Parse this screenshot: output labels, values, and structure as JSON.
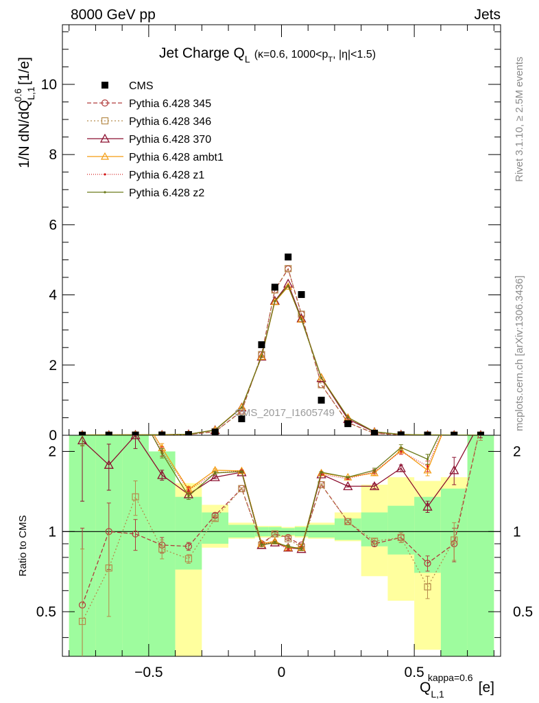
{
  "header": {
    "left": "8000 GeV pp",
    "right": "Jets"
  },
  "plot_title": {
    "main": "Jet Charge Q",
    "main_sub": "L",
    "cut_a": "(κ=0.6, 1000<p",
    "cut_sub": "T",
    "cut_b": ", |η|<1.5)"
  },
  "side_labels": {
    "rivet": "Rivet 3.1.10, ≥ 2.5M events",
    "site": "mcplots.cern.ch [arXiv:1306.3436]"
  },
  "watermark": "CMS_2017_I1605749",
  "axes": {
    "y_main_label": "1/N dN/dQ",
    "y_main_sup": "0.6",
    "y_main_sub": "L,1",
    "y_main_unit": "[1/e]",
    "y_ratio_label": "Ratio to CMS",
    "x_label": "Q",
    "x_sup": "kappa=0.6",
    "x_sub": "L,1",
    "x_unit": "[e]"
  },
  "chart_data": {
    "type": "line",
    "x_bins": [
      -0.8,
      -0.7,
      -0.6,
      -0.5,
      -0.4,
      -0.3,
      -0.2,
      -0.1,
      -0.05,
      0.0,
      0.05,
      0.1,
      0.2,
      0.3,
      0.4,
      0.5,
      0.6,
      0.7,
      0.8
    ],
    "x": [
      -0.75,
      -0.65,
      -0.55,
      -0.45,
      -0.35,
      -0.25,
      -0.15,
      -0.075,
      -0.025,
      0.025,
      0.075,
      0.15,
      0.25,
      0.35,
      0.45,
      0.55,
      0.65,
      0.75
    ],
    "main_xlim": [
      -0.825,
      0.825
    ],
    "main_ylim": [
      0,
      11.7
    ],
    "main_yticks": [
      0,
      2,
      4,
      6,
      8,
      10
    ],
    "ratio_ylim": [
      0.34,
      2.3
    ],
    "ratio_yscale": "log",
    "ratio_yticks": [
      0.5,
      1,
      2
    ],
    "x_ticks": [
      -0.5,
      0,
      0.5
    ],
    "data": {
      "name": "CMS",
      "y": [
        0.003,
        0.004,
        0.005,
        0.008,
        0.02,
        0.09,
        0.47,
        2.58,
        4.22,
        5.08,
        4.01,
        1.0,
        0.33,
        0.06,
        0.011,
        0.005,
        0.003,
        0.003
      ]
    },
    "series": [
      {
        "name": "Pythia 6.428 345",
        "color": "#b03a3a",
        "dash": "6,3",
        "marker": "circle",
        "y": [
          0.0016,
          0.004,
          0.0049,
          0.007,
          0.018,
          0.104,
          0.69,
          2.3,
          4.14,
          4.74,
          3.45,
          1.44,
          0.36,
          0.054,
          0.0104,
          0.0038,
          0.0027,
          0.0045
        ],
        "ratio": [
          0.53,
          1.0,
          0.98,
          0.89,
          0.88,
          1.15,
          1.45,
          0.9,
          0.98,
          0.95,
          0.89,
          1.5,
          1.09,
          0.9,
          0.95,
          0.76,
          0.9,
          2.5
        ],
        "ratio_err": [
          0.5,
          0.28,
          0.13,
          0.06,
          0.03,
          0.02,
          0.01,
          0.01,
          0.01,
          0.01,
          0.01,
          0.01,
          0.01,
          0.02,
          0.04,
          0.05,
          0.13,
          0.3
        ]
      },
      {
        "name": "Pythia 6.428 346",
        "color": "#b58a4a",
        "dash": "2,3",
        "marker": "square",
        "y": [
          0.0014,
          0.003,
          0.0068,
          0.007,
          0.016,
          0.101,
          0.68,
          2.3,
          4.14,
          4.75,
          3.45,
          1.44,
          0.36,
          0.055,
          0.0105,
          0.0031,
          0.0028,
          0.0045
        ],
        "ratio": [
          0.46,
          0.73,
          1.35,
          0.86,
          0.79,
          1.12,
          1.45,
          0.89,
          0.98,
          0.94,
          0.87,
          1.5,
          1.09,
          0.92,
          0.95,
          0.62,
          0.93,
          2.5
        ],
        "ratio_err": [
          0.4,
          0.25,
          0.2,
          0.07,
          0.03,
          0.02,
          0.01,
          0.01,
          0.01,
          0.01,
          0.01,
          0.01,
          0.01,
          0.02,
          0.04,
          0.06,
          0.15,
          0.3
        ]
      },
      {
        "name": "Pythia 6.428 370",
        "color": "#8b0e2e",
        "dash": "",
        "marker": "triangle",
        "y": [
          0.0066,
          0.007,
          0.0115,
          0.013,
          0.027,
          0.146,
          0.79,
          2.24,
          3.83,
          4.32,
          3.33,
          1.63,
          0.46,
          0.091,
          0.019,
          0.0062,
          0.005,
          0.008
        ],
        "ratio": [
          2.2,
          1.78,
          2.3,
          1.63,
          1.38,
          1.6,
          1.67,
          0.89,
          0.91,
          0.87,
          0.86,
          1.64,
          1.48,
          1.48,
          1.73,
          1.24,
          1.7,
          2.6
        ],
        "ratio_err": [
          0.9,
          0.35,
          0.25,
          0.07,
          0.04,
          0.02,
          0.01,
          0.01,
          0.01,
          0.01,
          0.01,
          0.01,
          0.01,
          0.03,
          0.05,
          0.06,
          0.2,
          0.35
        ]
      },
      {
        "name": "Pythia 6.428 ambt1",
        "color": "#f39c12",
        "dash": "",
        "marker": "triangle-open-orange",
        "y": [
          0.009,
          0.012,
          0.015,
          0.0165,
          0.029,
          0.154,
          0.8,
          2.24,
          3.8,
          4.24,
          3.3,
          1.65,
          0.51,
          0.1,
          0.022,
          0.0085,
          0.008,
          0.008
        ],
        "ratio": [
          3.0,
          3.0,
          3.0,
          2.06,
          1.44,
          1.7,
          1.69,
          0.9,
          0.92,
          0.87,
          0.87,
          1.66,
          1.6,
          1.66,
          2.02,
          1.7,
          3.0,
          3.0
        ],
        "ratio_err": [
          0.9,
          0.4,
          0.3,
          0.08,
          0.04,
          0.02,
          0.01,
          0.01,
          0.01,
          0.01,
          0.01,
          0.01,
          0.01,
          0.03,
          0.05,
          0.08,
          0.3,
          0.4
        ]
      },
      {
        "name": "Pythia 6.428 z1",
        "color": "#d42020",
        "dash": "1,2",
        "marker": "dot",
        "y": [
          0.009,
          0.012,
          0.015,
          0.016,
          0.029,
          0.15,
          0.79,
          2.24,
          3.82,
          4.27,
          3.32,
          1.63,
          0.5,
          0.1,
          0.022,
          0.0088,
          0.008,
          0.008
        ],
        "ratio": [
          3.0,
          3.0,
          3.0,
          2.0,
          1.43,
          1.66,
          1.69,
          0.9,
          0.91,
          0.86,
          0.87,
          1.64,
          1.58,
          1.68,
          2.0,
          1.76,
          3.0,
          3.0
        ],
        "ratio_err": [
          0.9,
          0.4,
          0.3,
          0.08,
          0.04,
          0.02,
          0.01,
          0.01,
          0.01,
          0.01,
          0.01,
          0.01,
          0.01,
          0.03,
          0.05,
          0.08,
          0.3,
          0.4
        ]
      },
      {
        "name": "Pythia 6.428 z2",
        "color": "#6b7a1a",
        "dash": "",
        "marker": "dot",
        "y": [
          0.009,
          0.012,
          0.015,
          0.0155,
          0.028,
          0.151,
          0.79,
          2.25,
          3.82,
          4.26,
          3.3,
          1.64,
          0.51,
          0.1,
          0.023,
          0.009,
          0.008,
          0.008
        ],
        "ratio": [
          3.0,
          3.0,
          3.0,
          1.97,
          1.36,
          1.66,
          1.68,
          0.89,
          0.91,
          0.88,
          0.86,
          1.67,
          1.6,
          1.7,
          2.07,
          1.87,
          3.0,
          3.0
        ],
        "ratio_err": [
          0.9,
          0.4,
          0.3,
          0.08,
          0.04,
          0.02,
          0.01,
          0.01,
          0.01,
          0.01,
          0.01,
          0.01,
          0.01,
          0.03,
          0.05,
          0.08,
          0.3,
          0.4
        ]
      }
    ],
    "uncertainty_bands": {
      "inner_color": "#9efc9e",
      "outer_color": "#ffff9e",
      "green_lo": [
        0.3,
        0.3,
        0.3,
        0.3,
        0.72,
        0.9,
        0.95,
        0.96,
        0.96,
        0.97,
        0.96,
        0.95,
        0.93,
        0.88,
        0.82,
        0.7,
        0.3,
        0.3
      ],
      "green_hi": [
        2.5,
        2.5,
        2.5,
        2.0,
        1.35,
        1.18,
        1.06,
        1.04,
        1.04,
        1.03,
        1.04,
        1.06,
        1.12,
        1.18,
        1.25,
        1.35,
        1.45,
        2.5
      ],
      "yellow_lo": [
        0.3,
        0.3,
        0.38,
        0.65,
        0.3,
        0.87,
        0.94,
        0.95,
        0.95,
        0.96,
        0.95,
        0.94,
        0.92,
        0.68,
        0.55,
        0.36,
        0.34,
        0.3
      ],
      "yellow_hi": [
        2.5,
        2.5,
        2.1,
        1.9,
        1.52,
        1.26,
        1.08,
        1.05,
        1.05,
        1.04,
        1.05,
        1.08,
        1.18,
        1.5,
        1.6,
        1.55,
        1.6,
        2.5
      ]
    }
  }
}
